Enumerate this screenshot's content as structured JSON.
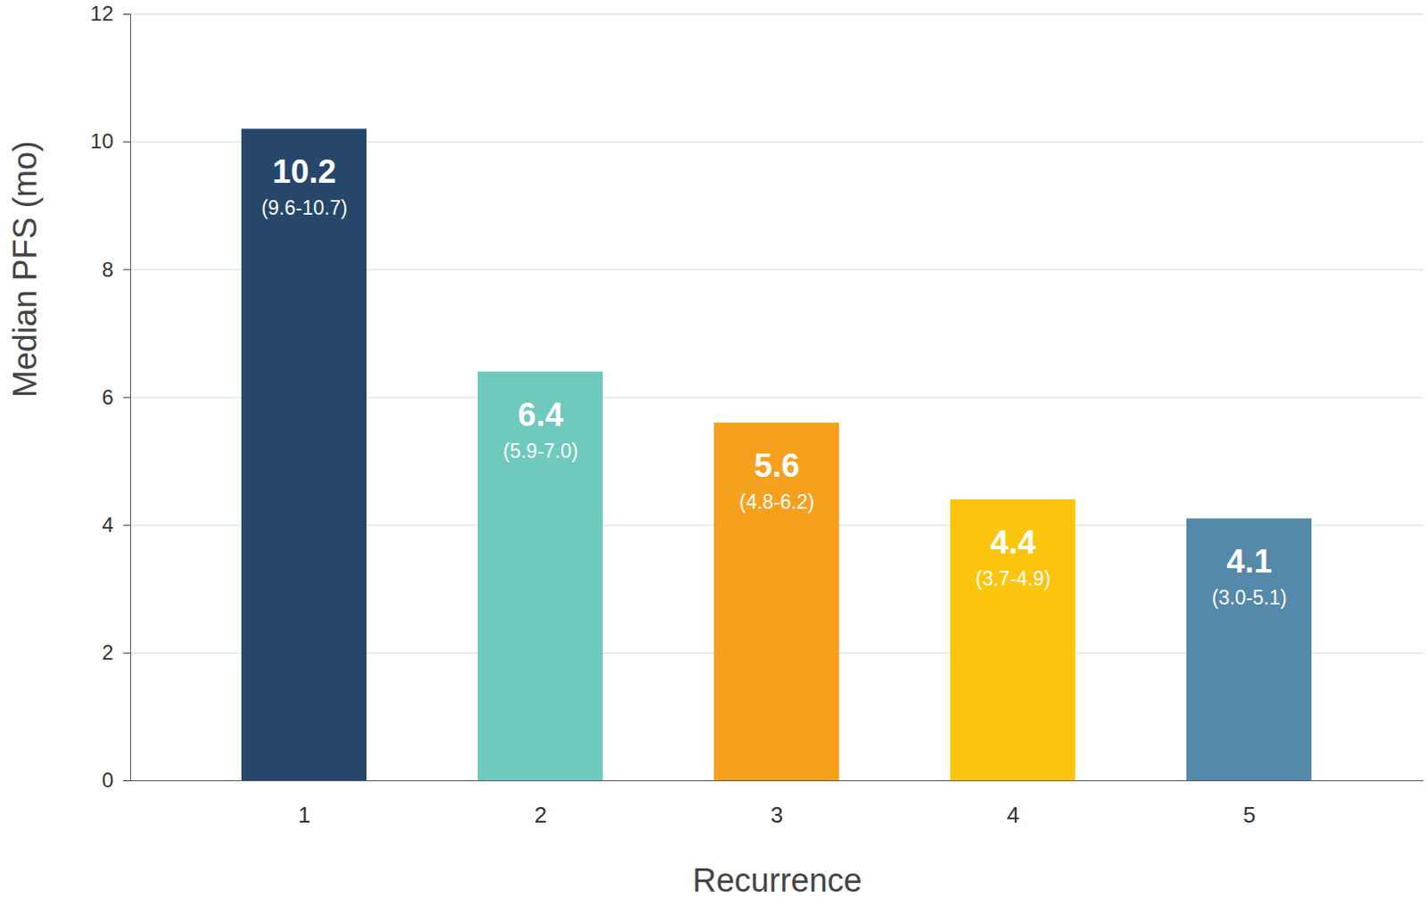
{
  "chart_data": {
    "type": "bar",
    "xlabel": "Recurrence",
    "ylabel": "Median PFS (mo)",
    "categories": [
      "1",
      "2",
      "3",
      "4",
      "5"
    ],
    "values": [
      10.2,
      6.4,
      5.6,
      4.4,
      4.1
    ],
    "ci_labels": [
      "(9.6-10.7)",
      "(5.9-7.0)",
      "(4.8-6.2)",
      "(3.7-4.9)",
      "(3.0-5.1)"
    ],
    "colors": [
      "#26476a",
      "#6fc9bd",
      "#f6a11e",
      "#fbc50f",
      "#5489aa"
    ],
    "ylim": [
      0,
      12
    ],
    "yticks": [
      0,
      2,
      4,
      6,
      8,
      10,
      12
    ],
    "grid": true,
    "data_labels": true
  }
}
